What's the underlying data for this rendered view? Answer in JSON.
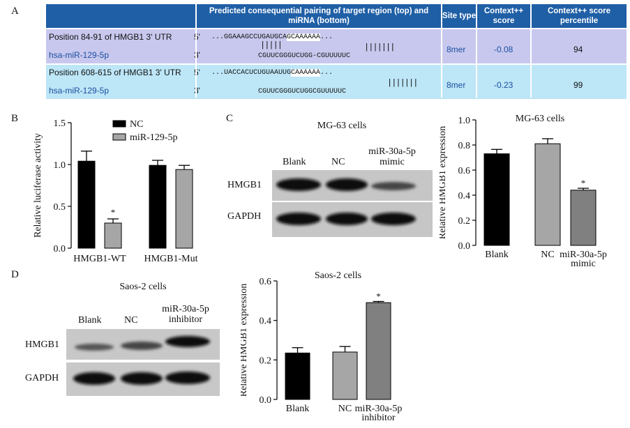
{
  "panels": {
    "a": "A",
    "b": "B",
    "c": "C",
    "d": "D"
  },
  "table": {
    "headers": {
      "pairing": "Predicted consequential pairing of target region (top) and miRNA (bottom)",
      "site_type": "Site type",
      "context_score": "Context++ score",
      "percentile": "Context++ score percentile"
    },
    "rows": [
      {
        "position": "Position 84-91 of HMGB1 3' UTR",
        "mirna": "hsa-miR-129-5p",
        "prime5": "5'",
        "prime3": "3'",
        "target_prefix": "...GGAAAGCCUGAUGCA",
        "target_hl": "GCAAAAAA",
        "target_suffix": "...",
        "pair_bars": "|||||",
        "pair_bars_right": "|||||||",
        "mirna_seq": "CGUUCGGGUCUGG-CGUUUUUC",
        "site_type": "8mer",
        "context_score": "-0.08",
        "percentile": "94"
      },
      {
        "position": "Position 608-615 of HMGB1 3' UTR",
        "mirna": "hsa-miR-129-5p",
        "prime5": "5'",
        "prime3": "3'",
        "target_prefix": "...UACCACUCUGUAAUUG",
        "target_hl": "CAAAAAA",
        "target_suffix": "...",
        "pair_bars": "",
        "pair_bars_right": "|||||||",
        "mirna_seq": "CGUUCGGGUCUGGCGUUUUUC",
        "site_type": "8mer",
        "context_score": "-0.23",
        "percentile": "99"
      }
    ]
  },
  "blot_c": {
    "title": "MG-63 cells",
    "lanes": [
      "Blank",
      "NC",
      "miR-30a-5p mimic"
    ],
    "bands": [
      "HMGB1",
      "GAPDH"
    ]
  },
  "blot_d": {
    "title": "Saos-2 cells",
    "lanes": [
      "Blank",
      "NC",
      "miR-30a-5p inhibitor"
    ],
    "bands": [
      "HMGB1",
      "GAPDH"
    ]
  },
  "colors": {
    "header_blue": "#1f5fa6",
    "row1": "#c8c8ee",
    "row2": "#bde6f7",
    "link_blue": "#1c4fa0",
    "black_bar": "#000000",
    "light_gray_bar": "#a6a6a6",
    "dark_gray_bar": "#808080"
  },
  "chart_data": [
    {
      "id": "b",
      "type": "bar",
      "title": "",
      "ylabel": "Relative luciferase activity",
      "xlabel": "",
      "ylim": [
        0,
        1.5
      ],
      "yticks": [
        "0.0",
        "0.5",
        "1.0",
        "1.5"
      ],
      "categories": [
        "HMGB1-WT",
        "HMGB1-Mut"
      ],
      "series": [
        {
          "name": "NC",
          "values": [
            1.04,
            0.99
          ],
          "errors": [
            0.12,
            0.06
          ]
        },
        {
          "name": "miR-129-5p",
          "values": [
            0.3,
            0.94
          ],
          "errors": [
            0.05,
            0.05
          ]
        }
      ],
      "significance": [
        {
          "category": "HMGB1-WT",
          "series": "miR-129-5p",
          "label": "*"
        }
      ],
      "legend": "top"
    },
    {
      "id": "c",
      "type": "bar",
      "title": "MG-63 cells",
      "ylabel": "Relative HMGB1 expression",
      "xlabel": "",
      "ylim": [
        0,
        1.0
      ],
      "yticks": [
        "0.0",
        "0.2",
        "0.4",
        "0.6",
        "0.8",
        "1.0"
      ],
      "categories": [
        "Blank",
        "NC",
        "miR-30a-5p mimic"
      ],
      "values": [
        0.73,
        0.81,
        0.44
      ],
      "errors": [
        0.035,
        0.04,
        0.015
      ],
      "significance": [
        {
          "category": "miR-30a-5p mimic",
          "label": "*"
        }
      ]
    },
    {
      "id": "d",
      "type": "bar",
      "title": "Saos-2 cells",
      "ylabel": "Relative HMGB1 expression",
      "xlabel": "",
      "ylim": [
        0,
        0.6
      ],
      "yticks": [
        "0.0",
        "0.2",
        "0.4",
        "0.6"
      ],
      "categories": [
        "Blank",
        "NC",
        "miR-30a-5p inhibitor"
      ],
      "values": [
        0.235,
        0.24,
        0.49
      ],
      "errors": [
        0.027,
        0.028,
        0.006
      ],
      "significance": [
        {
          "category": "miR-30a-5p inhibitor",
          "label": "*"
        }
      ]
    }
  ]
}
